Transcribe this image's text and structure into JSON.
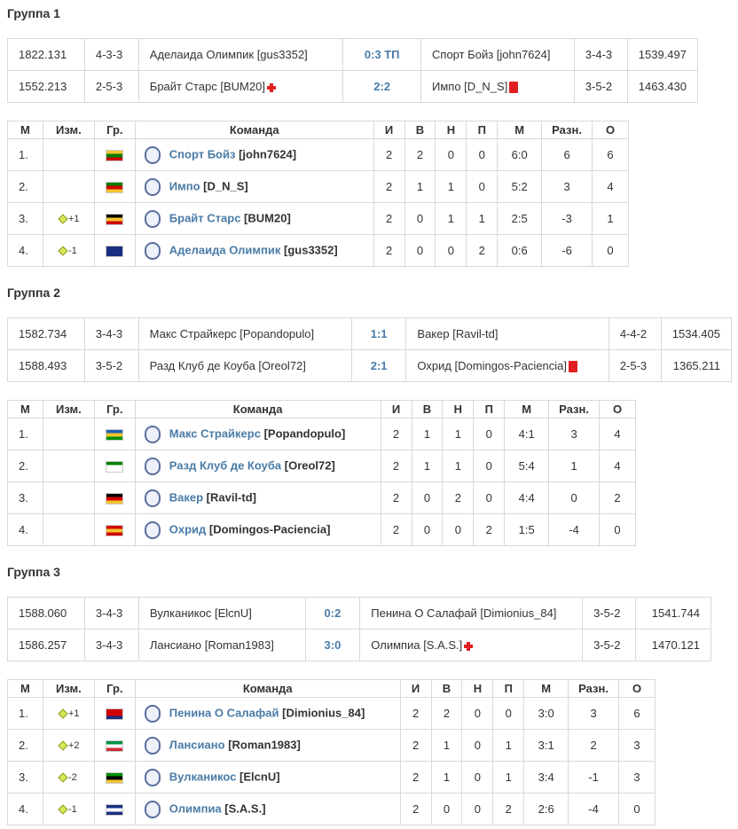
{
  "groups": [
    {
      "title": "Группа 1",
      "matches": [
        {
          "rating1": "1822.131",
          "form1": "4-3-3",
          "team1": "Аделаида Олимпик [gus3352]",
          "icon1": "",
          "score": "0:3 ТП",
          "team2": "Спорт Бойз [john7624]",
          "icon2": "",
          "form2": "3-4-3",
          "rating2": "1539.497"
        },
        {
          "rating1": "1552.213",
          "form1": "2-5-3",
          "team1": "Брайт Старс [BUM20]",
          "icon1": "injury-cross-icon",
          "score": "2:2",
          "team2": "Импо [D_N_S]",
          "icon2": "red-card-icon",
          "form2": "3-5-2",
          "rating2": "1463.430"
        }
      ],
      "headers": [
        "М",
        "Изм.",
        "Гр.",
        "Команда",
        "И",
        "В",
        "Н",
        "П",
        "М",
        "Разн.",
        "О"
      ],
      "rows": [
        {
          "pos": "1.",
          "change": "",
          "dir": "",
          "flag": [
            "#f4c430",
            "#008000",
            "#d00000"
          ],
          "name": "Спорт Бойз",
          "user": "[john7624]",
          "p": "2",
          "w": "2",
          "d": "0",
          "l": "0",
          "goals": "6:0",
          "diff": "6",
          "pts": "6"
        },
        {
          "pos": "2.",
          "change": "",
          "dir": "",
          "flag": [
            "#008000",
            "#d00000",
            "#f4c430"
          ],
          "name": "Импо",
          "user": "[D_N_S]",
          "p": "2",
          "w": "1",
          "d": "1",
          "l": "0",
          "goals": "5:2",
          "diff": "3",
          "pts": "4"
        },
        {
          "pos": "3.",
          "change": "+1",
          "dir": "up",
          "flag": [
            "#000000",
            "#f4c430",
            "#d00000"
          ],
          "name": "Брайт Старс",
          "user": "[BUM20]",
          "p": "2",
          "w": "0",
          "d": "1",
          "l": "1",
          "goals": "2:5",
          "diff": "-3",
          "pts": "1"
        },
        {
          "pos": "4.",
          "change": "-1",
          "dir": "down",
          "flag": [
            "#1a2f80",
            "#1a2f80",
            "#1a2f80"
          ],
          "name": "Аделаида Олимпик",
          "user": "[gus3352]",
          "p": "2",
          "w": "0",
          "d": "0",
          "l": "2",
          "goals": "0:6",
          "diff": "-6",
          "pts": "0"
        }
      ]
    },
    {
      "title": "Группа 2",
      "matches": [
        {
          "rating1": "1582.734",
          "form1": "3-4-3",
          "team1": "Макс Страйкерс [Popandopulo]",
          "icon1": "",
          "score": "1:1",
          "team2": "Вакер [Ravil-td]",
          "icon2": "",
          "form2": "4-4-2",
          "rating2": "1534.405"
        },
        {
          "rating1": "1588.493",
          "form1": "3-5-2",
          "team1": "Разд Клуб де Коуба [Oreol72]",
          "icon1": "",
          "score": "2:1",
          "team2": "Охрид [Domingos-Paciencia]",
          "icon2": "red-card-icon",
          "form2": "2-5-3",
          "rating2": "1365.211"
        }
      ],
      "headers": [
        "М",
        "Изм.",
        "Гр.",
        "Команда",
        "И",
        "В",
        "Н",
        "П",
        "М",
        "Разн.",
        "О"
      ],
      "rows": [
        {
          "pos": "1.",
          "change": "",
          "dir": "",
          "flag": [
            "#1f5fb0",
            "#f4c430",
            "#009000"
          ],
          "name": "Макс Страйкерс",
          "user": "[Popandopulo]",
          "p": "2",
          "w": "1",
          "d": "1",
          "l": "0",
          "goals": "4:1",
          "diff": "3",
          "pts": "4"
        },
        {
          "pos": "2.",
          "change": "",
          "dir": "",
          "flag": [
            "#008000",
            "#ffffff",
            "#ffffff"
          ],
          "name": "Разд Клуб де Коуба",
          "user": "[Oreol72]",
          "p": "2",
          "w": "1",
          "d": "1",
          "l": "0",
          "goals": "5:4",
          "diff": "1",
          "pts": "4"
        },
        {
          "pos": "3.",
          "change": "",
          "dir": "",
          "flag": [
            "#000000",
            "#d00000",
            "#f4c430"
          ],
          "name": "Вакер",
          "user": "[Ravil-td]",
          "p": "2",
          "w": "0",
          "d": "2",
          "l": "0",
          "goals": "4:4",
          "diff": "0",
          "pts": "2"
        },
        {
          "pos": "4.",
          "change": "",
          "dir": "",
          "flag": [
            "#d00000",
            "#f4c430",
            "#d00000"
          ],
          "name": "Охрид",
          "user": "[Domingos-Paciencia]",
          "p": "2",
          "w": "0",
          "d": "0",
          "l": "2",
          "goals": "1:5",
          "diff": "-4",
          "pts": "0"
        }
      ]
    },
    {
      "title": "Группа 3",
      "matches": [
        {
          "rating1": "1588.060",
          "form1": "3-4-3",
          "team1": "Вулканикос [ElcnU]",
          "icon1": "",
          "score": "0:2",
          "team2": "Пенина О Салафай [Dimionius_84]",
          "icon2": "",
          "form2": "3-5-2",
          "rating2": "1541.744"
        },
        {
          "rating1": "1586.257",
          "form1": "3-4-3",
          "team1": "Лансиано [Roman1983]",
          "icon1": "",
          "score": "3:0",
          "team2": "Олимпиа [S.A.S.]",
          "icon2": "injury-cross-icon",
          "form2": "3-5-2",
          "rating2": "1470.121"
        }
      ],
      "headers": [
        "М",
        "Изм.",
        "Гр.",
        "Команда",
        "И",
        "В",
        "Н",
        "П",
        "М",
        "Разн.",
        "О"
      ],
      "rows": [
        {
          "pos": "1.",
          "change": "+1",
          "dir": "up",
          "flag": [
            "#d00000",
            "#d00000",
            "#1a2f80"
          ],
          "name": "Пенина О Салафай",
          "user": "[Dimionius_84]",
          "p": "2",
          "w": "2",
          "d": "0",
          "l": "0",
          "goals": "3:0",
          "diff": "3",
          "pts": "6"
        },
        {
          "pos": "2.",
          "change": "+2",
          "dir": "up",
          "flag": [
            "#009246",
            "#ffffff",
            "#ce2b37"
          ],
          "name": "Лансиано",
          "user": "[Roman1983]",
          "p": "2",
          "w": "1",
          "d": "0",
          "l": "1",
          "goals": "3:1",
          "diff": "2",
          "pts": "3"
        },
        {
          "pos": "3.",
          "change": "-2",
          "dir": "down",
          "flag": [
            "#009000",
            "#000000",
            "#f4c430"
          ],
          "name": "Вулканикос",
          "user": "[ElcnU]",
          "p": "2",
          "w": "1",
          "d": "0",
          "l": "1",
          "goals": "3:4",
          "diff": "-1",
          "pts": "3"
        },
        {
          "pos": "4.",
          "change": "-1",
          "dir": "down",
          "flag": [
            "#1a2f80",
            "#ffffff",
            "#1a2f80"
          ],
          "name": "Олимпиа",
          "user": "[S.A.S.]",
          "p": "2",
          "w": "0",
          "d": "0",
          "l": "2",
          "goals": "2:6",
          "diff": "-4",
          "pts": "0"
        }
      ]
    }
  ]
}
